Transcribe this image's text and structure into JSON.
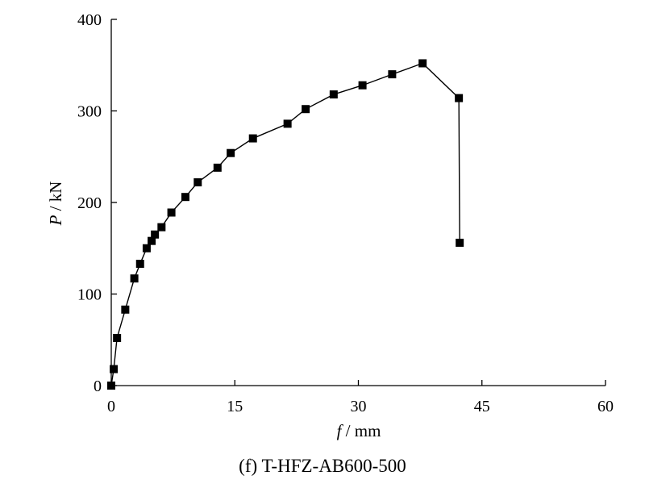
{
  "chart_data": {
    "type": "line",
    "caption": "(f) T-HFZ-AB600-500",
    "xlabel_var": "f",
    "xlabel_unit": " / mm",
    "ylabel_var": "P",
    "ylabel_unit": " / kN",
    "xlim": [
      0,
      60
    ],
    "ylim": [
      0,
      400
    ],
    "x_ticks": [
      0,
      15,
      30,
      45,
      60
    ],
    "y_ticks": [
      0,
      100,
      200,
      300,
      400
    ],
    "grid": false,
    "marker": "square",
    "series": [
      {
        "color": "#000000",
        "x": [
          0.0,
          0.3,
          0.7,
          1.7,
          2.8,
          3.5,
          4.3,
          4.9,
          5.3,
          6.1,
          7.3,
          9.0,
          10.5,
          12.9,
          14.5,
          17.2,
          21.4,
          23.6,
          27.0,
          30.5,
          34.1,
          37.8,
          42.2,
          42.3
        ],
        "y": [
          0,
          18,
          52,
          83,
          117,
          133,
          150,
          158,
          165,
          173,
          189,
          206,
          222,
          238,
          254,
          270,
          286,
          302,
          318,
          328,
          340,
          352,
          314,
          156
        ]
      }
    ]
  }
}
